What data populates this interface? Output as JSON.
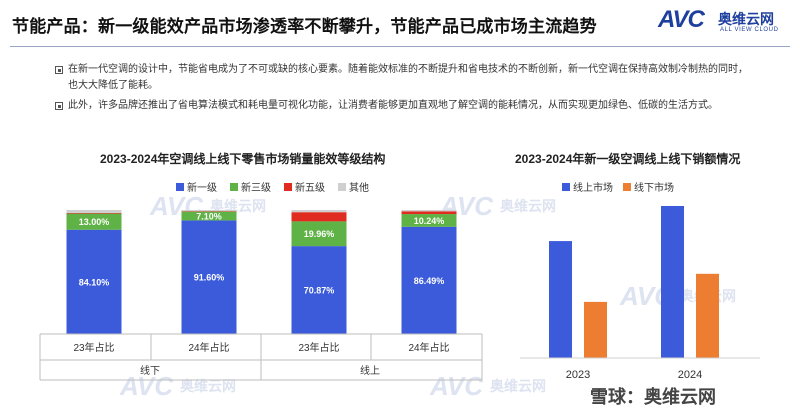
{
  "header": {
    "title": "节能产品：新一级能效产品市场渗透率不断攀升，节能产品已成市场主流趋势",
    "logo_avc": "AVC",
    "logo_cn": "奥维云网",
    "logo_en": "ALL VIEW CLOUD"
  },
  "bullets": [
    "在新一代空调的设计中，节能省电成为了不可或缺的核心要素。随着能效标准的不断提升和省电技术的不断创新，新一代空调在保持高效制冷制热的同时，也大大降低了能耗。",
    "此外，许多品牌还推出了省电算法模式和耗电量可视化功能，让消费者能够更加直观地了解空调的能耗情况，从而实现更加绿色、低碳的生活方式。"
  ],
  "watermark": {
    "avc": "AVC",
    "cn": "奥维云网"
  },
  "footer": {
    "text": "雪球：奥维云网"
  },
  "colors": {
    "level1": "#3b5bdb",
    "level3": "#5fb346",
    "level5": "#e02b20",
    "other": "#cfcfcf",
    "online": "#3b5bdb",
    "offline": "#ed7d31"
  },
  "chart_data": [
    {
      "type": "bar",
      "stacked": true,
      "title": "2023-2024年空调线上线下零售市场销量能效等级结构",
      "categories": [
        "23年占比",
        "24年占比",
        "23年占比",
        "24年占比"
      ],
      "groups": [
        {
          "label": "线下",
          "categories": [
            0,
            1
          ]
        },
        {
          "label": "线上",
          "categories": [
            2,
            3
          ]
        }
      ],
      "legend_position": "top",
      "ylim": [
        0,
        100
      ],
      "series": [
        {
          "name": "新一级",
          "values": [
            84.1,
            91.6,
            70.87,
            86.49
          ],
          "labels": [
            "84.10%",
            "91.60%",
            "70.87%",
            "86.49%"
          ]
        },
        {
          "name": "新三级",
          "values": [
            13.0,
            7.1,
            19.96,
            10.24
          ],
          "labels": [
            "13.00%",
            "7.10%",
            "19.96%",
            "10.24%"
          ]
        },
        {
          "name": "新五级",
          "values": [
            0.5,
            0.4,
            7.4,
            2.2
          ],
          "labels": [
            "",
            "",
            "",
            ""
          ]
        },
        {
          "name": "其他",
          "values": [
            2.4,
            0.9,
            1.77,
            1.07
          ],
          "labels": [
            "",
            "",
            "",
            ""
          ]
        }
      ]
    },
    {
      "type": "bar",
      "title": "2023-2024年新一级空调线上线下销额情况",
      "categories": [
        "2023",
        "2024"
      ],
      "legend_position": "top-left",
      "series": [
        {
          "name": "线上市场",
          "values": [
            100,
            130
          ]
        },
        {
          "name": "线下市场",
          "values": [
            48,
            72
          ]
        }
      ]
    }
  ]
}
